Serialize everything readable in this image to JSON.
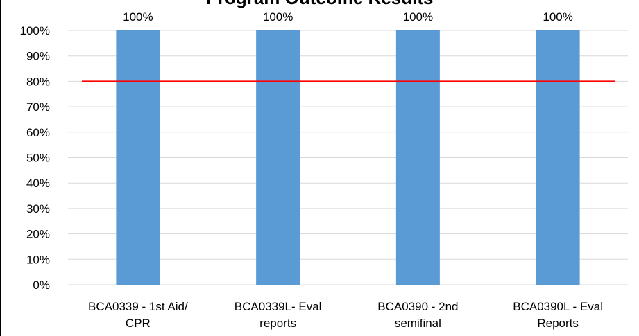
{
  "chart_data": {
    "type": "bar",
    "title": "Program Outcome Results",
    "categories": [
      [
        "BCA0339 - 1st Aid/",
        "CPR"
      ],
      [
        "BCA0339L- Eval",
        "reports"
      ],
      [
        "BCA0390 - 2nd",
        "semifinal"
      ],
      [
        "BCA0390L - Eval",
        "Reports"
      ]
    ],
    "values": [
      100,
      100,
      100,
      100
    ],
    "data_labels": [
      "100%",
      "100%",
      "100%",
      "100%"
    ],
    "y_ticks": [
      "0%",
      "10%",
      "20%",
      "30%",
      "40%",
      "50%",
      "60%",
      "70%",
      "80%",
      "90%",
      "100%"
    ],
    "ylim": [
      0,
      100
    ],
    "target_line": 80,
    "grid": true,
    "legend": "none",
    "colors": {
      "bar": "#5B9BD5",
      "target": "#FF0000",
      "grid": "#D9D9D9",
      "text": "#000000"
    }
  }
}
